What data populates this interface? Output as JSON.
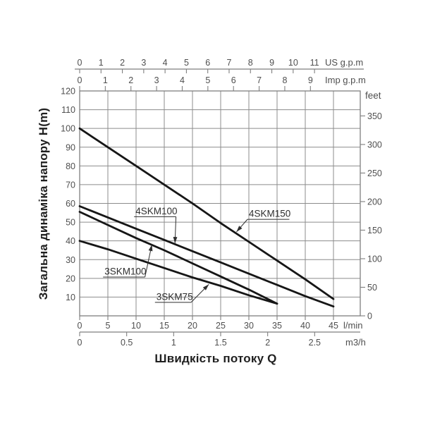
{
  "colors": {
    "background": "#ffffff",
    "grid": "#8c8c8c",
    "border": "#7f7f7f",
    "curve": "#161616",
    "tick_text": "#4f4f4f",
    "unit_text": "#4f4f4f",
    "title_text": "#1f1f1f",
    "callout": "#2f2f2f"
  },
  "chart_data": {
    "type": "line",
    "title": "",
    "xlabel": "Швидкість потоку Q",
    "ylabel": "Загальна динаміка напору H(m)",
    "grid": true,
    "xlim_lmin": [
      0,
      49.8
    ],
    "ylim_m": [
      0,
      120
    ],
    "x_axes": {
      "us_gpm": {
        "unit": "US g.p.m",
        "lmin_per_unit": 3.7854,
        "ticks": [
          0,
          1,
          2,
          3,
          4,
          5,
          6,
          7,
          8,
          9,
          10,
          11
        ]
      },
      "imp_gpm": {
        "unit": "Imp g.p.m",
        "lmin_per_unit": 4.5461,
        "ticks": [
          0,
          1,
          2,
          3,
          4,
          5,
          6,
          7,
          8,
          9
        ]
      },
      "lmin": {
        "unit": "l/min",
        "lmin_per_unit": 1,
        "ticks": [
          0,
          5,
          10,
          15,
          20,
          25,
          30,
          35,
          40,
          45
        ]
      },
      "m3h": {
        "unit": "m3/h",
        "lmin_per_unit": 16.6667,
        "ticks": [
          0,
          0.5,
          1,
          1.5,
          2,
          2.5
        ]
      }
    },
    "y_axes": {
      "meters": {
        "unit": "H(m)",
        "ticks": [
          10,
          20,
          30,
          40,
          50,
          60,
          70,
          80,
          90,
          100,
          110,
          120
        ]
      },
      "feet": {
        "unit": "feet",
        "m_per_unit": 0.3048,
        "ticks": [
          0,
          50,
          100,
          150,
          200,
          250,
          300,
          350
        ]
      }
    },
    "series": [
      {
        "name": "4SKM150",
        "points": [
          [
            0,
            100
          ],
          [
            5,
            90
          ],
          [
            10,
            80
          ],
          [
            15,
            70
          ],
          [
            20,
            60
          ],
          [
            25,
            49.5
          ],
          [
            30,
            39.5
          ],
          [
            35,
            29.5
          ],
          [
            40,
            19.5
          ],
          [
            45,
            9
          ]
        ]
      },
      {
        "name": "4SKM100",
        "points": [
          [
            0,
            58.5
          ],
          [
            5,
            52.5
          ],
          [
            10,
            46.5
          ],
          [
            15,
            40.5
          ],
          [
            20,
            34.5
          ],
          [
            25,
            28.5
          ],
          [
            30,
            22.5
          ],
          [
            35,
            16.5
          ],
          [
            40,
            10.5
          ],
          [
            45,
            5
          ]
        ]
      },
      {
        "name": "3SKM100",
        "points": [
          [
            0,
            55.5
          ],
          [
            5,
            48.5
          ],
          [
            10,
            41.5
          ],
          [
            15,
            35
          ],
          [
            20,
            28
          ],
          [
            25,
            21
          ],
          [
            30,
            14
          ],
          [
            35,
            6.5
          ]
        ]
      },
      {
        "name": "3SKM75",
        "points": [
          [
            0,
            40
          ],
          [
            5,
            35.5
          ],
          [
            10,
            30.5
          ],
          [
            15,
            25.5
          ],
          [
            20,
            20.5
          ],
          [
            25,
            16
          ],
          [
            30,
            11
          ],
          [
            35,
            6.5
          ]
        ]
      }
    ],
    "callouts": [
      {
        "label": "4SKM100",
        "text_q": 9.9,
        "text_h": 54.2,
        "target_q": 16.9,
        "target_h": 38.7,
        "leader_from": "right"
      },
      {
        "label": "4SKM150",
        "text_q": 30.0,
        "text_h": 52.8,
        "target_q": 27.8,
        "target_h": 44.8,
        "leader_from": "left"
      },
      {
        "label": "3SKM100",
        "text_q": 4.4,
        "text_h": 22.0,
        "target_q": 12.8,
        "target_h": 38.0,
        "leader_from": "right"
      },
      {
        "label": "3SKM75",
        "text_q": 13.6,
        "text_h": 8.5,
        "target_q": 22.9,
        "target_h": 16.8,
        "leader_from": "right"
      }
    ]
  }
}
